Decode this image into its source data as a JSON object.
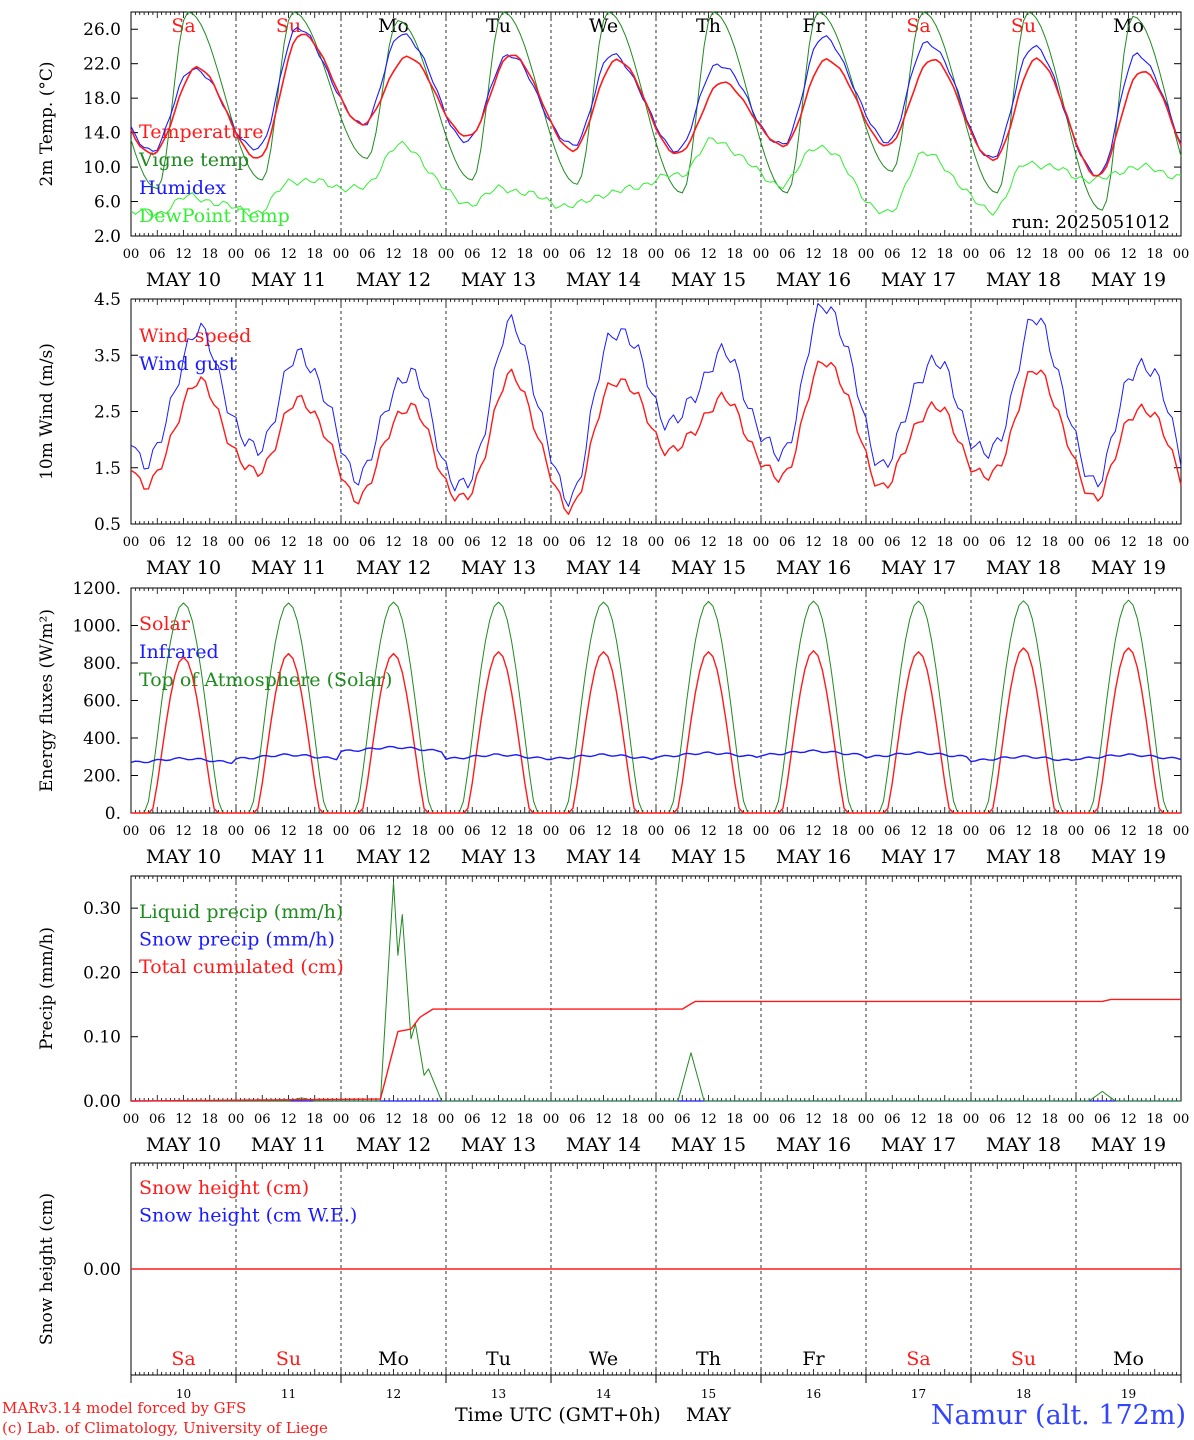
{
  "colors": {
    "red": "#ff1a1a",
    "blue": "#1a1aff",
    "green": "#1f8a1f",
    "lightgreen": "#33ee33",
    "black": "#000000"
  },
  "days": {
    "names": [
      "Sa",
      "Su",
      "Mo",
      "Tu",
      "We",
      "Th",
      "Fr",
      "Sa",
      "Su",
      "Mo"
    ],
    "weekend": [
      true,
      true,
      false,
      false,
      false,
      false,
      false,
      true,
      true,
      false
    ],
    "dates": [
      "MAY 10",
      "MAY 11",
      "MAY 12",
      "MAY 13",
      "MAY 14",
      "MAY 15",
      "MAY 16",
      "MAY 17",
      "MAY 18",
      "MAY 19"
    ],
    "numbers": [
      "10",
      "11",
      "12",
      "13",
      "14",
      "15",
      "16",
      "17",
      "18",
      "19"
    ],
    "hour_ticks": [
      "00",
      "06",
      "12",
      "18"
    ],
    "final_tick": "00"
  },
  "chart_data": [
    {
      "type": "line",
      "ylabel": "2m Temp. (°C)",
      "ylim": [
        2,
        28
      ],
      "yticks": [
        "2.0",
        "6.0",
        "10.0",
        "14.0",
        "18.0",
        "22.0",
        "26.0"
      ],
      "ytick_values": [
        2,
        6,
        10,
        14,
        18,
        22,
        26
      ],
      "annotation": "run: 2025051012",
      "series": [
        {
          "name": "Temperature",
          "color": "red",
          "min": [
            11.5,
            11.0,
            15.0,
            13.5,
            12.0,
            11.5,
            12.5,
            12.5,
            10.8,
            9.0
          ],
          "max": [
            21.5,
            25.5,
            22.8,
            23.0,
            22.5,
            19.8,
            22.5,
            22.5,
            22.5,
            21.2
          ]
        },
        {
          "name": "Vigne temp",
          "color": "green",
          "min": [
            7.5,
            8.5,
            11.0,
            8.5,
            8.0,
            7.0,
            7.0,
            9.5,
            7.0,
            5.0
          ],
          "max": [
            28.0,
            28.0,
            27.0,
            28.0,
            28.0,
            28.0,
            28.0,
            28.0,
            28.0,
            27.5
          ]
        },
        {
          "name": "Humidex",
          "color": "blue",
          "min": [
            12.0,
            12.0,
            15.0,
            13.0,
            12.5,
            12.0,
            12.5,
            13.0,
            11.0,
            9.0
          ],
          "max": [
            21.5,
            26.0,
            25.5,
            23.0,
            23.0,
            22.0,
            25.0,
            24.5,
            24.0,
            23.0
          ]
        },
        {
          "name": "DewPoint Temp",
          "color": "lightgreen",
          "min": [
            4.5,
            4.8,
            7.5,
            5.8,
            5.5,
            9.0,
            8.0,
            4.5,
            5.0,
            8.5
          ],
          "max": [
            6.5,
            8.5,
            12.5,
            7.5,
            7.0,
            13.0,
            12.5,
            11.5,
            10.5,
            10.0
          ]
        }
      ]
    },
    {
      "type": "line",
      "ylabel": "10m Wind (m/s)",
      "ylim": [
        0.5,
        4.5
      ],
      "yticks": [
        "0.5",
        "1.5",
        "2.5",
        "3.5",
        "4.5"
      ],
      "ytick_values": [
        0.5,
        1.5,
        2.5,
        3.5,
        4.5
      ],
      "series": [
        {
          "name": "Wind speed",
          "color": "red",
          "min": [
            1.2,
            1.4,
            1.0,
            0.9,
            0.8,
            1.8,
            1.3,
            1.2,
            1.3,
            1.0
          ],
          "max": [
            3.0,
            2.7,
            2.6,
            3.1,
            3.1,
            2.7,
            3.4,
            2.6,
            3.2,
            2.6
          ]
        },
        {
          "name": "Wind gust",
          "color": "blue",
          "min": [
            1.6,
            1.8,
            1.4,
            1.1,
            1.0,
            2.3,
            1.7,
            1.6,
            1.7,
            1.3
          ],
          "max": [
            3.9,
            3.5,
            3.2,
            4.0,
            4.0,
            3.5,
            4.4,
            3.4,
            4.1,
            3.4
          ]
        }
      ]
    },
    {
      "type": "line",
      "ylabel": "Energy fluxes (W/m²)",
      "ylim": [
        0,
        1200
      ],
      "yticks": [
        "0.",
        "200.",
        "400.",
        "600.",
        "800.",
        "1000.",
        "1200."
      ],
      "ytick_values": [
        0,
        200,
        400,
        600,
        800,
        1000,
        1200
      ],
      "series": [
        {
          "name": "Solar",
          "color": "red",
          "daily_peak": [
            830,
            850,
            850,
            860,
            860,
            860,
            865,
            860,
            880,
            880
          ]
        },
        {
          "name": "Infrared",
          "color": "blue",
          "typical": [
            280,
            300,
            340,
            300,
            300,
            310,
            320,
            310,
            290,
            300
          ]
        },
        {
          "name": "Top of Atmosphere (Solar)",
          "color": "green",
          "daily_peak": [
            1120,
            1120,
            1125,
            1125,
            1125,
            1128,
            1130,
            1130,
            1132,
            1135
          ]
        }
      ]
    },
    {
      "type": "line",
      "ylabel": "Precip (mm/h)",
      "ylim": [
        0,
        0.35
      ],
      "yticks": [
        "0.00",
        "0.10",
        "0.20",
        "0.30"
      ],
      "ytick_values": [
        0,
        0.1,
        0.2,
        0.3
      ],
      "series": [
        {
          "name": "Liquid precip (mm/h)",
          "color": "green",
          "events": [
            {
              "hour": 39,
              "value": 0.005
            },
            {
              "hour": 60,
              "value": 0.34
            },
            {
              "hour": 62,
              "value": 0.29
            },
            {
              "hour": 65,
              "value": 0.12
            },
            {
              "hour": 68,
              "value": 0.05
            },
            {
              "hour": 128,
              "value": 0.075
            },
            {
              "hour": 222,
              "value": 0.015
            }
          ]
        },
        {
          "name": "Snow precip (mm/h)",
          "color": "blue",
          "value": 0
        },
        {
          "name": "Total cumulated (cm)",
          "color": "red",
          "steps": [
            {
              "hour": 0,
              "value": 0.0
            },
            {
              "hour": 57,
              "value": 0.003
            },
            {
              "hour": 61,
              "value": 0.108
            },
            {
              "hour": 64,
              "value": 0.112
            },
            {
              "hour": 66,
              "value": 0.13
            },
            {
              "hour": 69,
              "value": 0.143
            },
            {
              "hour": 126,
              "value": 0.143
            },
            {
              "hour": 129,
              "value": 0.155
            },
            {
              "hour": 222,
              "value": 0.155
            },
            {
              "hour": 224,
              "value": 0.158
            },
            {
              "hour": 240,
              "value": 0.158
            }
          ]
        }
      ]
    },
    {
      "type": "line",
      "ylabel": "Snow height (cm)",
      "ylim": [
        -1,
        1
      ],
      "yticks": [
        "0.00"
      ],
      "ytick_values": [
        0
      ],
      "series": [
        {
          "name": "Snow height (cm)",
          "color": "red",
          "value": 0
        },
        {
          "name": "Snow height (cm W.E.)",
          "color": "blue",
          "value": 0
        }
      ]
    }
  ],
  "footer": {
    "model_line": "MARv3.14 model forced by GFS",
    "lab_line": "(c) Lab. of Climatology, University of Liege",
    "xlabel": "Time UTC (GMT+0h)",
    "month": "MAY",
    "station": "Namur (alt. 172m)"
  }
}
